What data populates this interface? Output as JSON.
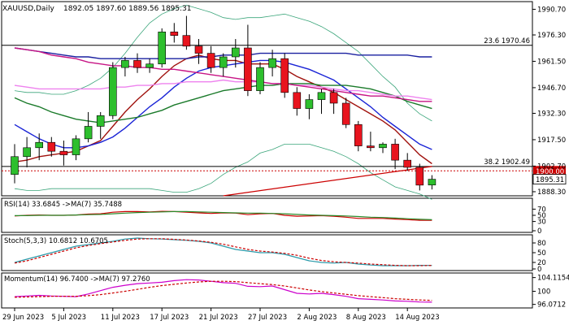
{
  "chart_data": {
    "type": "candlestick",
    "title": "XAUUSD,Daily",
    "ohlc_header": "1892.05 1897.60 1889.56 1895.31",
    "price_axis": {
      "ylim": [
        1886.0,
        1995.0
      ],
      "ticks": [
        "1990.70",
        "1976.30",
        "1961.50",
        "1946.70",
        "1932.30",
        "1917.50",
        "1902.70",
        "1888.30"
      ]
    },
    "x_labels": [
      {
        "index": 0,
        "label": "29 Jun 2023"
      },
      {
        "index": 4,
        "label": "5 Jul 2023"
      },
      {
        "index": 8,
        "label": "11 Jul 2023"
      },
      {
        "index": 12,
        "label": "17 Jul 2023"
      },
      {
        "index": 16,
        "label": "21 Jul 2023"
      },
      {
        "index": 20,
        "label": "27 Jul 2023"
      },
      {
        "index": 24,
        "label": "2 Aug 2023"
      },
      {
        "index": 28,
        "label": "8 Aug 2023"
      },
      {
        "index": 32,
        "label": "14 Aug 2023"
      }
    ],
    "candles": [
      [
        1898,
        1915,
        1893,
        1908
      ],
      [
        1908,
        1919,
        1902,
        1913
      ],
      [
        1913,
        1921,
        1906,
        1916
      ],
      [
        1916,
        1919,
        1908,
        1911
      ],
      [
        1911,
        1917,
        1903,
        1909
      ],
      [
        1909,
        1920,
        1906,
        1918
      ],
      [
        1918,
        1933,
        1916,
        1925
      ],
      [
        1925,
        1933,
        1918,
        1931
      ],
      [
        1931,
        1961,
        1929,
        1958
      ],
      [
        1958,
        1964,
        1953,
        1962
      ],
      [
        1962,
        1966,
        1955,
        1958
      ],
      [
        1958,
        1963,
        1955,
        1960
      ],
      [
        1960,
        1980,
        1958,
        1978
      ],
      [
        1978,
        1983,
        1972,
        1976
      ],
      [
        1976,
        1987,
        1968,
        1970
      ],
      [
        1970,
        1974,
        1960,
        1966
      ],
      [
        1966,
        1970,
        1955,
        1958
      ],
      [
        1958,
        1966,
        1953,
        1964
      ],
      [
        1964,
        1974,
        1958,
        1969
      ],
      [
        1969,
        1982,
        1942,
        1945
      ],
      [
        1945,
        1961,
        1943,
        1958
      ],
      [
        1958,
        1968,
        1953,
        1963
      ],
      [
        1963,
        1966,
        1941,
        1944
      ],
      [
        1944,
        1947,
        1931,
        1935
      ],
      [
        1935,
        1943,
        1929,
        1940
      ],
      [
        1940,
        1946,
        1932,
        1944
      ],
      [
        1944,
        1946,
        1932,
        1938
      ],
      [
        1938,
        1941,
        1924,
        1926
      ],
      [
        1926,
        1928,
        1911,
        1914
      ],
      [
        1914,
        1922,
        1911,
        1913
      ],
      [
        1913,
        1916,
        1910,
        1915
      ],
      [
        1915,
        1918,
        1901,
        1906
      ],
      [
        1906,
        1910,
        1900,
        1902
      ],
      [
        1902,
        1904,
        1889,
        1892
      ],
      [
        1892.05,
        1897.6,
        1889.56,
        1895.31
      ]
    ],
    "moving_averages": [
      {
        "color": "#a0120e",
        "values": [
          1905,
          1906,
          1908,
          1909,
          1910,
          1911,
          1914,
          1917,
          1925,
          1933,
          1940,
          1946,
          1953,
          1959,
          1963,
          1965,
          1963,
          1962,
          1962,
          1960,
          1960,
          1960,
          1957,
          1953,
          1950,
          1947,
          1944,
          1940,
          1936,
          1932,
          1928,
          1923,
          1916,
          1909,
          1904
        ]
      },
      {
        "color": "#1a24d6",
        "values": [
          1926,
          1922,
          1918,
          1915,
          1913,
          1913,
          1914,
          1916,
          1919,
          1924,
          1930,
          1936,
          1941,
          1947,
          1952,
          1956,
          1958,
          1959,
          1960,
          1961,
          1962,
          1962,
          1961,
          1959,
          1957,
          1954,
          1951,
          1946,
          1941,
          1936,
          1930,
          1925,
          1920,
          1915,
          1912
        ]
      },
      {
        "color": "#1a7a2a",
        "values": [
          1941,
          1938,
          1936,
          1933,
          1931,
          1929,
          1928,
          1927,
          1928,
          1929,
          1930,
          1932,
          1934,
          1937,
          1939,
          1941,
          1943,
          1945,
          1946,
          1947,
          1948,
          1948,
          1949,
          1949,
          1949,
          1948,
          1948,
          1948,
          1947,
          1946,
          1944,
          1942,
          1939,
          1937,
          1935
        ]
      },
      {
        "color": "#1a20a0",
        "values": [
          1969,
          1968,
          1967,
          1966,
          1965,
          1964,
          1964,
          1963,
          1963,
          1963,
          1963,
          1963,
          1963,
          1963,
          1963,
          1964,
          1964,
          1965,
          1965,
          1965,
          1966,
          1966,
          1966,
          1966,
          1966,
          1966,
          1966,
          1966,
          1965,
          1965,
          1965,
          1965,
          1965,
          1964,
          1964
        ]
      },
      {
        "color": "#ee82ee",
        "values": [
          1948,
          1947,
          1946,
          1946,
          1946,
          1946,
          1946,
          1946,
          1947,
          1947,
          1948,
          1948,
          1949,
          1949,
          1950,
          1950,
          1950,
          1951,
          1950,
          1950,
          1950,
          1949,
          1949,
          1948,
          1948,
          1947,
          1946,
          1945,
          1945,
          1944,
          1943,
          1942,
          1942,
          1941,
          1940
        ]
      },
      {
        "color": "#c71585",
        "values": [
          1969,
          1968,
          1967,
          1965,
          1964,
          1963,
          1961,
          1960,
          1959,
          1959,
          1958,
          1958,
          1957,
          1957,
          1956,
          1955,
          1954,
          1953,
          1952,
          1951,
          1950,
          1949,
          1949,
          1948,
          1947,
          1946,
          1945,
          1944,
          1943,
          1942,
          1942,
          1941,
          1940,
          1939,
          1939
        ]
      }
    ],
    "bands": {
      "color": "#3aa57a",
      "upper": [
        1945,
        1944,
        1944,
        1943,
        1943,
        1945,
        1948,
        1952,
        1958,
        1966,
        1975,
        1983,
        1988,
        1991,
        1993,
        1991,
        1989,
        1986,
        1985,
        1986,
        1986,
        1987,
        1988,
        1986,
        1984,
        1981,
        1977,
        1972,
        1967,
        1960,
        1953,
        1947,
        1938,
        1932,
        1928
      ],
      "lower": [
        1890,
        1889,
        1889,
        1890,
        1890,
        1890,
        1890,
        1890,
        1890,
        1890,
        1890,
        1890,
        1889,
        1888,
        1888,
        1890,
        1893,
        1898,
        1902,
        1905,
        1910,
        1912,
        1915,
        1915,
        1915,
        1913,
        1911,
        1908,
        1904,
        1899,
        1895,
        1891,
        1889,
        1887,
        1884
      ]
    },
    "levels": [
      {
        "label": "23.6 1970.46",
        "value": 1970.46,
        "color": "#000000"
      },
      {
        "label": "38.2 1902.49",
        "value": 1902.49,
        "color": "#000000"
      },
      {
        "label": "1900.00",
        "value": 1900.0,
        "color": "#cc0000",
        "dashed": true
      }
    ],
    "trendline": {
      "color": "#cc0000",
      "from": [
        17,
        1886
      ],
      "to": [
        34,
        1902.5
      ]
    },
    "current_price": {
      "label": "1895.31",
      "value": 1895.31
    },
    "panels": [
      {
        "label": "RSI(14) 33.6845 ->MA(7) 35.7488",
        "ticks": [
          "70",
          "50",
          "30",
          "0"
        ],
        "ylim": [
          0,
          100
        ],
        "series": [
          {
            "color": "#cc0000",
            "values": [
              48,
              50,
              51,
              50,
              50,
              51,
              54,
              55,
              60,
              62,
              62,
              61,
              63,
              62,
              60,
              58,
              56,
              58,
              57,
              52,
              55,
              56,
              50,
              47,
              48,
              49,
              47,
              44,
              40,
              40,
              40,
              38,
              36,
              34,
              33.68
            ]
          },
          {
            "color": "#2a8a2a",
            "values": [
              49,
              49,
              50,
              50,
              50,
              51,
              52,
              53,
              55,
              57,
              59,
              60,
              61,
              62,
              62,
              61,
              60,
              59,
              58,
              57,
              57,
              56,
              55,
              53,
              51,
              50,
              49,
              48,
              46,
              44,
              43,
              41,
              39,
              37,
              35.75
            ]
          }
        ]
      },
      {
        "label": "Stoch(5,3,3) 10.6812 10.6705",
        "ticks": [
          "80",
          "50",
          "20",
          "0"
        ],
        "ylim": [
          0,
          100
        ],
        "series": [
          {
            "color": "#2a9aaa",
            "values": [
              20,
              30,
              40,
              50,
              60,
              70,
              75,
              80,
              85,
              92,
              95,
              93,
              92,
              90,
              88,
              85,
              80,
              70,
              60,
              55,
              50,
              50,
              45,
              35,
              25,
              20,
              18,
              20,
              15,
              12,
              10,
              10,
              10,
              11,
              10.68
            ]
          },
          {
            "color": "#cc0000",
            "dashed": true,
            "values": [
              18,
              25,
              35,
              45,
              55,
              65,
              72,
              78,
              83,
              88,
              92,
              93,
              93,
              91,
              89,
              86,
              82,
              76,
              68,
              60,
              55,
              52,
              48,
              42,
              33,
              26,
              22,
              20,
              18,
              15,
              13,
              11,
              10,
              10,
              10.67
            ]
          }
        ]
      },
      {
        "label": "Momentum(14) 96.7400 ->MA(7) 97.2760",
        "ticks": [
          "104.1154",
          "100",
          "96.0712"
        ],
        "ylim": [
          95.5,
          105
        ],
        "series": [
          {
            "color": "#cc00cc",
            "values": [
              98.4,
              98.6,
              98.8,
              98.6,
              98.5,
              98.4,
              99.2,
              100.2,
              101.2,
              101.8,
              102.3,
              102.5,
              102.7,
              103.2,
              103.5,
              103.4,
              103.0,
              102.6,
              102.4,
              101.5,
              101.4,
              101.6,
              100.5,
              99.4,
              99.2,
              99.4,
              99.0,
              98.5,
              97.8,
              97.6,
              97.4,
              97.1,
              97.0,
              96.8,
              96.74
            ]
          },
          {
            "color": "#cc0000",
            "dashed": true,
            "values": [
              98.2,
              98.3,
              98.4,
              98.5,
              98.5,
              98.5,
              98.7,
              99.0,
              99.5,
              100.0,
              100.6,
              101.2,
              101.7,
              102.1,
              102.5,
              102.8,
              103.0,
              103.0,
              102.9,
              102.6,
              102.3,
              102.0,
              101.6,
              101.0,
              100.4,
              99.9,
              99.5,
              99.1,
              98.7,
              98.4,
              98.1,
              97.8,
              97.6,
              97.4,
              97.28
            ]
          }
        ]
      }
    ]
  }
}
